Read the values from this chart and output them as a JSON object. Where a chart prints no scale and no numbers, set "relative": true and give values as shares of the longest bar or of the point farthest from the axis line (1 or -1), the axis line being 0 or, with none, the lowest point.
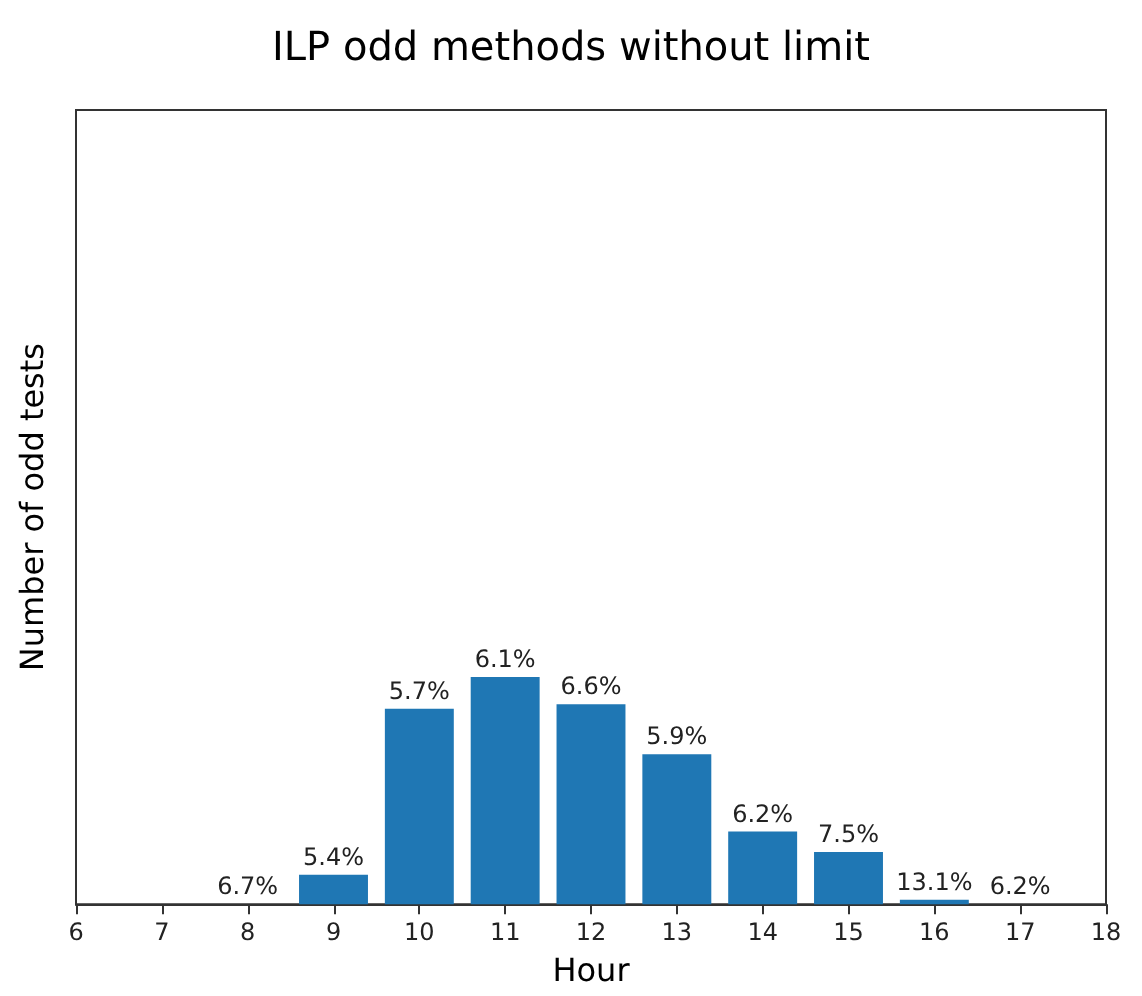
{
  "chart_data": {
    "type": "bar",
    "title": "ILP odd methods without limit",
    "xlabel": "Hour",
    "ylabel": "Number of odd tests",
    "x": [
      8,
      9,
      10,
      11,
      12,
      13,
      14,
      15,
      16,
      17
    ],
    "values": [
      0,
      0.13,
      0.86,
      1,
      0.88,
      0.66,
      0.32,
      0.23,
      0.02,
      0
    ],
    "annotations": [
      {
        "text": "6.7%",
        "x": 8,
        "y": 0
      },
      {
        "text": "5.4%",
        "x": 9,
        "y": 0.13
      },
      {
        "text": "5.7%",
        "x": 10,
        "y": 0.86
      },
      {
        "text": "6.1%",
        "x": 11,
        "y": 1
      },
      {
        "text": "6.6%",
        "x": 12,
        "y": 0.88
      },
      {
        "text": "5.9%",
        "x": 13,
        "y": 0.66
      },
      {
        "text": "6.2%",
        "x": 14,
        "y": 0.32
      },
      {
        "text": "7.5%",
        "x": 15,
        "y": 0.23
      },
      {
        "text": "13.1%",
        "x": 16,
        "y": 0.02
      },
      {
        "text": "6.2%",
        "x": 17,
        "y": 0
      }
    ],
    "color": "#1f77b4",
    "relative": true,
    "xlim": [
      6,
      18
    ],
    "xticks": [
      6,
      7,
      8,
      9,
      10,
      11,
      12,
      13,
      14,
      15,
      16,
      17,
      18
    ]
  }
}
